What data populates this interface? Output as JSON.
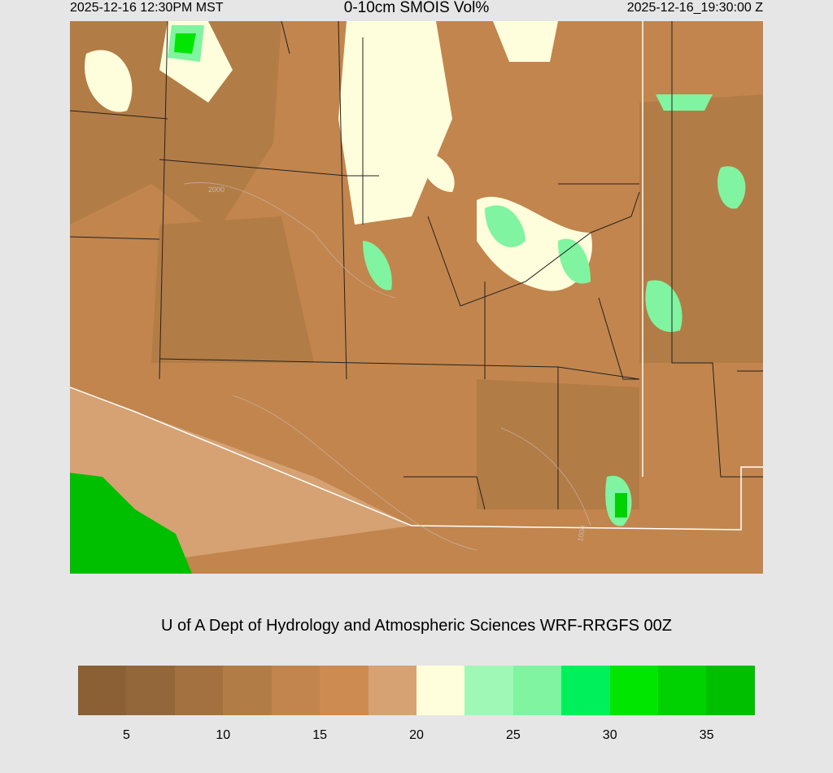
{
  "header": {
    "local_time": "2025-12-16 12:30PM MST",
    "title": "0-10cm SMOIS Vol%",
    "utc_time": "2025-12-16_19:30:00 Z"
  },
  "credit": "U of A Dept of Hydrology and Atmospheric Sciences WRF-RRGFS 00Z",
  "map_contour_labels": [
    "2000",
    "1000"
  ],
  "colorbar": {
    "bounds": [
      2.5,
      5,
      7.5,
      10,
      12.5,
      15,
      17.5,
      20,
      22.5,
      25,
      27.5,
      30,
      32.5,
      35,
      37.5
    ],
    "colors": [
      "#8a6034",
      "#94673a",
      "#a3713f",
      "#b27c46",
      "#c2854d",
      "#ce8b51",
      "#d6a273",
      "#fffedc",
      "#a0f8b7",
      "#80f4a0",
      "#00f05c",
      "#00e600",
      "#00d100",
      "#00be00"
    ],
    "tick_labels": [
      "5",
      "10",
      "15",
      "20",
      "25",
      "30",
      "35"
    ]
  }
}
